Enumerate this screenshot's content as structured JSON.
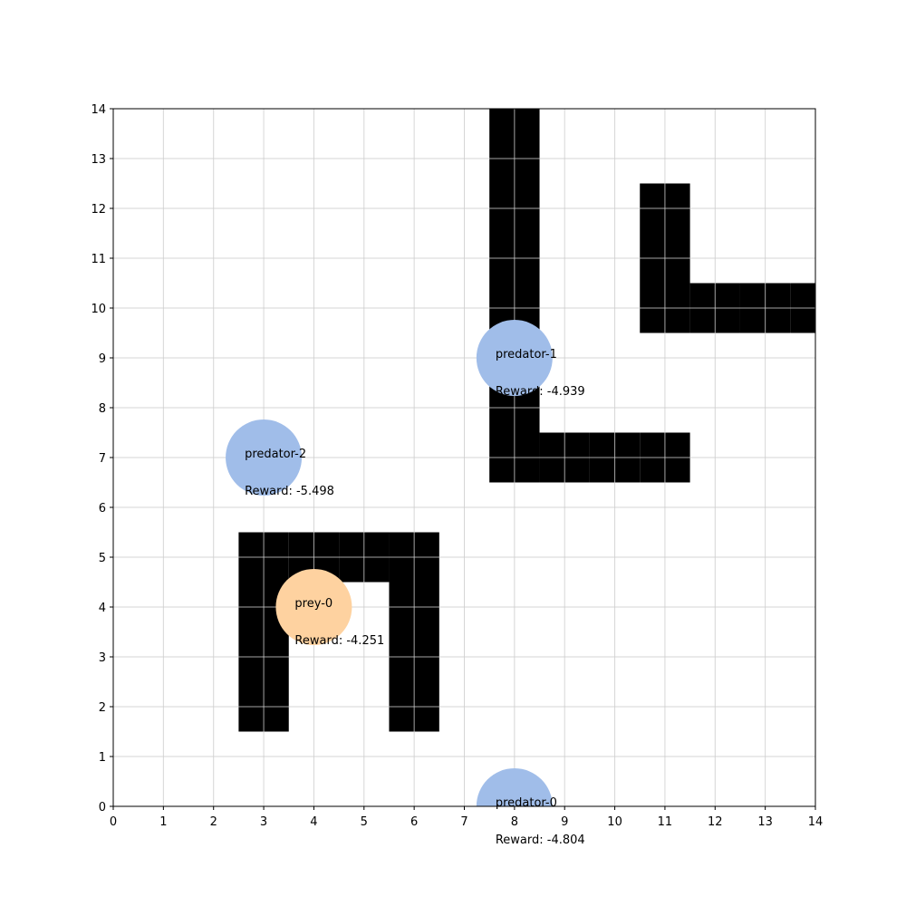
{
  "grid": {
    "xlim": [
      0,
      14
    ],
    "ylim": [
      0,
      14
    ],
    "x_ticks": [
      0,
      1,
      2,
      3,
      4,
      5,
      6,
      7,
      8,
      9,
      10,
      11,
      12,
      13,
      14
    ],
    "y_ticks": [
      0,
      1,
      2,
      3,
      4,
      5,
      6,
      7,
      8,
      9,
      10,
      11,
      12,
      13,
      14
    ],
    "show_grid": true,
    "grid_color": "#cccccc",
    "wall_color": "#000000"
  },
  "walls": [
    [
      8,
      7
    ],
    [
      8,
      8
    ],
    [
      8,
      9
    ],
    [
      8,
      10
    ],
    [
      8,
      11
    ],
    [
      8,
      12
    ],
    [
      8,
      13
    ],
    [
      8,
      14
    ],
    [
      9,
      7
    ],
    [
      10,
      7
    ],
    [
      11,
      7
    ],
    [
      11,
      10
    ],
    [
      11,
      11
    ],
    [
      11,
      12
    ],
    [
      12,
      10
    ],
    [
      13,
      10
    ],
    [
      14,
      10
    ],
    [
      3,
      2
    ],
    [
      3,
      3
    ],
    [
      3,
      4
    ],
    [
      3,
      5
    ],
    [
      4,
      5
    ],
    [
      5,
      5
    ],
    [
      6,
      2
    ],
    [
      6,
      3
    ],
    [
      6,
      4
    ],
    [
      6,
      5
    ]
  ],
  "agents": [
    {
      "name": "predator-0",
      "x": 8,
      "y": 0,
      "role": "predator",
      "color": "#a0bde9",
      "reward_text": "Reward: -4.804"
    },
    {
      "name": "predator-1",
      "x": 8,
      "y": 9,
      "role": "predator",
      "color": "#a0bde9",
      "reward_text": "Reward: -4.939"
    },
    {
      "name": "predator-2",
      "x": 3,
      "y": 7,
      "role": "predator",
      "color": "#a0bde9",
      "reward_text": "Reward: -5.498"
    },
    {
      "name": "prey-0",
      "x": 4,
      "y": 4,
      "role": "prey",
      "color": "#fed2a0",
      "reward_text": "Reward: -4.251"
    }
  ]
}
